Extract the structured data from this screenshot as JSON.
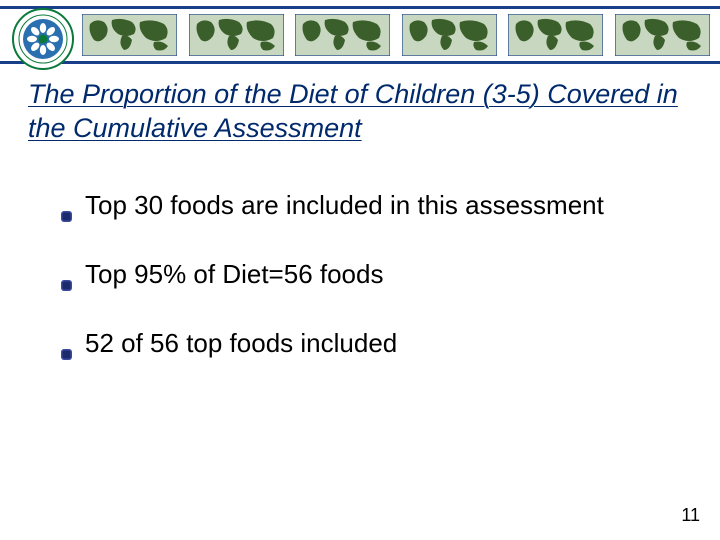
{
  "header": {
    "band_top_color": "#1a3f8a",
    "band_bottom_color": "#1a3f8a",
    "band_fill_color": "#ffffff",
    "globe_land_color": "#3a5f2a",
    "globe_ocean_color": "#c8d8c0",
    "globe_border_color": "#1a3f8a",
    "logo_ring_color": "#0a7a3a",
    "logo_center_color": "#2a6fb0",
    "logo_flower_color": "#ffffff"
  },
  "title": {
    "text": "The Proportion of the Diet of Children (3-5) Covered in the Cumulative Assessment",
    "color": "#002a6c",
    "fontsize": 27,
    "font_style": "italic",
    "underline": true
  },
  "bullets": {
    "items": [
      "Top 30 foods are included in this assessment",
      "Top 95% of Diet=56 foods",
      "52 of 56 top foods included"
    ],
    "fontsize": 26,
    "text_color": "#000000",
    "glyph_outer_color": "#1a2a6c",
    "glyph_inner_color": "#1a2a6c"
  },
  "page_number": "11",
  "background_color": "#ffffff"
}
